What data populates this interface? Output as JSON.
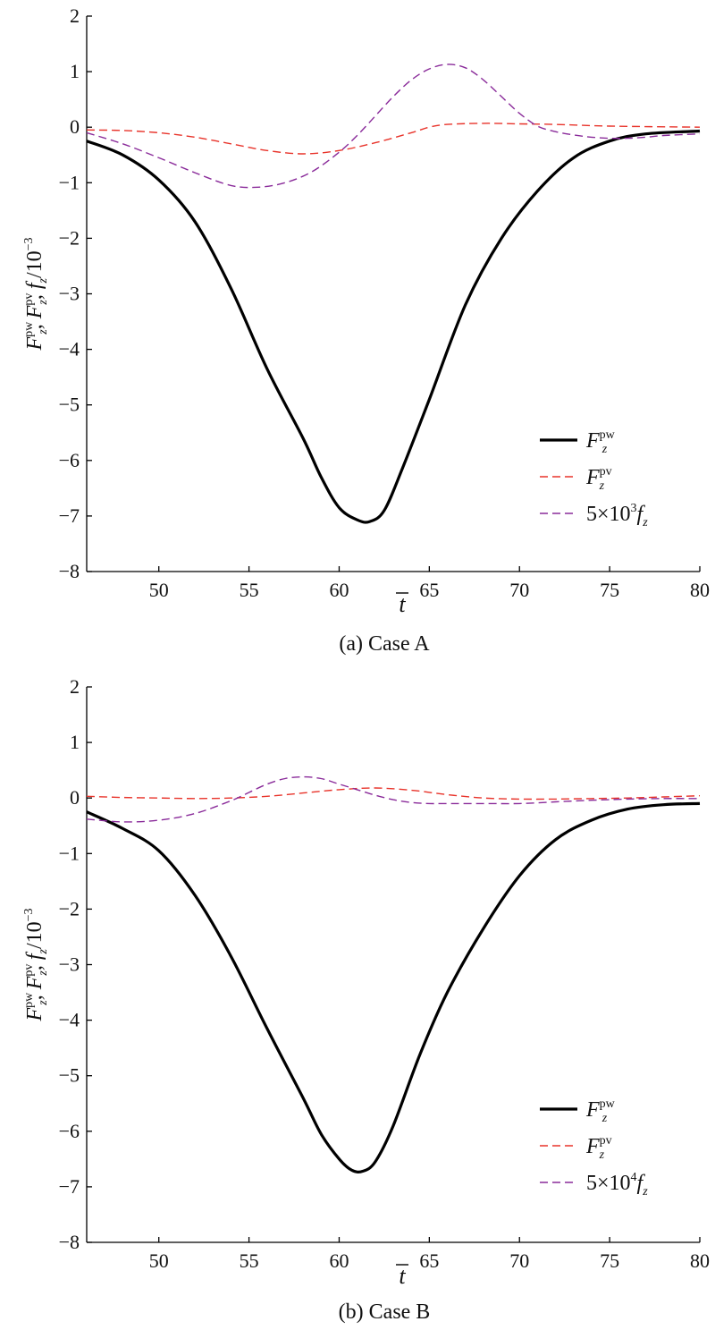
{
  "chart_data": [
    {
      "type": "line",
      "panel": "a",
      "caption": "(a) Case A",
      "xlabel": "t",
      "ylabel_unit": "/10",
      "ylabel_exp": "−3",
      "xlim": [
        46,
        80
      ],
      "ylim": [
        -8,
        2
      ],
      "xticks": [
        50,
        55,
        60,
        65,
        70,
        75,
        80
      ],
      "xtick_labels": [
        "50",
        "55",
        "60",
        "65",
        "70",
        "75",
        "80"
      ],
      "yticks": [
        2,
        1,
        0,
        -1,
        -2,
        -3,
        -4,
        -5,
        -6,
        -7,
        -8
      ],
      "ytick_labels": [
        "2",
        "1",
        "0",
        "−1",
        "−2",
        "−3",
        "−4",
        "−5",
        "−6",
        "−7",
        "−8"
      ],
      "legend_position": "bottom-right",
      "series": [
        {
          "name": "F_z^pw",
          "label_main": "F",
          "label_sub": "z",
          "label_sup": "pw",
          "color": "#000000",
          "style": "solid",
          "x": [
            46,
            48,
            50,
            52,
            54,
            56,
            58,
            59,
            60,
            61,
            61.7,
            62.5,
            63.5,
            65,
            67,
            69,
            71,
            73,
            75,
            77,
            80
          ],
          "y": [
            -0.25,
            -0.5,
            -0.95,
            -1.7,
            -2.9,
            -4.35,
            -5.6,
            -6.3,
            -6.85,
            -7.07,
            -7.1,
            -6.9,
            -6.15,
            -4.9,
            -3.2,
            -2.0,
            -1.15,
            -0.55,
            -0.25,
            -0.12,
            -0.07
          ]
        },
        {
          "name": "F_z^pv",
          "label_main": "F",
          "label_sub": "z",
          "label_sup": "pv",
          "color": "#e8332a",
          "style": "dashed",
          "x": [
            46,
            48,
            50,
            52,
            54,
            56,
            58,
            60,
            62,
            64,
            65,
            66,
            68,
            70,
            72,
            75,
            80
          ],
          "y": [
            -0.05,
            -0.06,
            -0.1,
            -0.18,
            -0.3,
            -0.42,
            -0.48,
            -0.42,
            -0.28,
            -0.1,
            0.0,
            0.05,
            0.07,
            0.06,
            0.05,
            0.02,
            0.0
          ]
        },
        {
          "name": "5×10^3 f_z",
          "label_main": "5×10",
          "label_exp": "3",
          "label_tail": "f",
          "label_sub": "z",
          "color": "#8a2b9a",
          "style": "dashed",
          "x": [
            46,
            48,
            50,
            52,
            54,
            55.5,
            57,
            58.5,
            60,
            61,
            62,
            63,
            64,
            65,
            66,
            67,
            68,
            69,
            70,
            71,
            72,
            73,
            74,
            75,
            76,
            77,
            78,
            80
          ],
          "y": [
            -0.1,
            -0.3,
            -0.55,
            -0.82,
            -1.05,
            -1.08,
            -1.0,
            -0.8,
            -0.45,
            -0.15,
            0.2,
            0.55,
            0.85,
            1.05,
            1.13,
            1.07,
            0.85,
            0.55,
            0.25,
            0.02,
            -0.08,
            -0.14,
            -0.18,
            -0.2,
            -0.2,
            -0.18,
            -0.15,
            -0.12
          ]
        }
      ]
    },
    {
      "type": "line",
      "panel": "b",
      "caption": "(b) Case B",
      "xlabel": "t",
      "ylabel_unit": "/10",
      "ylabel_exp": "−3",
      "xlim": [
        46,
        80
      ],
      "ylim": [
        -8,
        2
      ],
      "xticks": [
        50,
        55,
        60,
        65,
        70,
        75,
        80
      ],
      "xtick_labels": [
        "50",
        "55",
        "60",
        "65",
        "70",
        "75",
        "80"
      ],
      "yticks": [
        2,
        1,
        0,
        -1,
        -2,
        -3,
        -4,
        -5,
        -6,
        -7,
        -8
      ],
      "ytick_labels": [
        "2",
        "1",
        "0",
        "−1",
        "−2",
        "−3",
        "−4",
        "−5",
        "−6",
        "−7",
        "−8"
      ],
      "legend_position": "bottom-right",
      "series": [
        {
          "name": "F_z^pw",
          "label_main": "F",
          "label_sub": "z",
          "label_sup": "pw",
          "color": "#000000",
          "style": "solid",
          "x": [
            46,
            48,
            50,
            52,
            54,
            56,
            58,
            59,
            60,
            60.7,
            61.3,
            62,
            63,
            64.5,
            66,
            68,
            70,
            72,
            74,
            76,
            78,
            80
          ],
          "y": [
            -0.25,
            -0.55,
            -0.95,
            -1.75,
            -2.85,
            -4.15,
            -5.4,
            -6.05,
            -6.5,
            -6.7,
            -6.72,
            -6.55,
            -5.9,
            -4.6,
            -3.5,
            -2.35,
            -1.4,
            -0.75,
            -0.4,
            -0.2,
            -0.12,
            -0.1
          ]
        },
        {
          "name": "F_z^pv",
          "label_main": "F",
          "label_sub": "z",
          "label_sup": "pv",
          "color": "#e8332a",
          "style": "dashed",
          "x": [
            46,
            48,
            50,
            52,
            54,
            56,
            58,
            60,
            62,
            64,
            66,
            68,
            70,
            72,
            74,
            76,
            78,
            80
          ],
          "y": [
            0.03,
            0.01,
            0.0,
            -0.01,
            0.0,
            0.03,
            0.09,
            0.15,
            0.18,
            0.14,
            0.06,
            0.0,
            -0.02,
            -0.02,
            -0.01,
            0.0,
            0.02,
            0.04
          ]
        },
        {
          "name": "5×10^4 f_z",
          "label_main": "5×10",
          "label_exp": "4",
          "label_tail": "f",
          "label_sub": "z",
          "color": "#8a2b9a",
          "style": "dashed",
          "x": [
            46,
            48,
            50,
            52,
            54,
            55,
            56,
            57,
            58,
            59,
            60,
            61,
            62,
            63,
            64,
            65,
            66,
            68,
            70,
            72,
            74,
            76,
            78,
            80
          ],
          "y": [
            -0.38,
            -0.43,
            -0.4,
            -0.28,
            -0.05,
            0.1,
            0.25,
            0.35,
            0.38,
            0.35,
            0.25,
            0.15,
            0.05,
            -0.03,
            -0.08,
            -0.1,
            -0.1,
            -0.1,
            -0.1,
            -0.07,
            -0.04,
            -0.02,
            -0.01,
            -0.01
          ]
        }
      ]
    }
  ]
}
